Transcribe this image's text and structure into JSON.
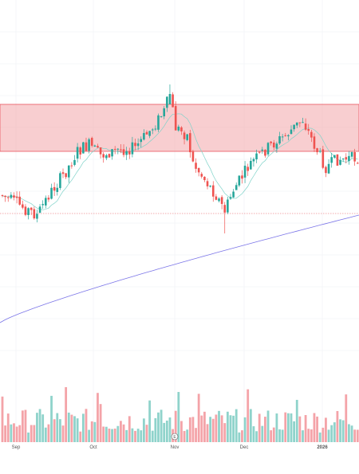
{
  "chart_data": {
    "type": "candlestick",
    "x_axis_labels": [
      "Sep",
      "Oct",
      "Nov",
      "Dec",
      "2026"
    ],
    "resistance_zone": {
      "low": 0.0,
      "high": 1.0,
      "color": "#f3a5a9",
      "border": "#e8545c"
    },
    "support_line": {
      "color": "#e8545c",
      "style": "dotted"
    },
    "moving_averages": [
      {
        "id": "short-ma",
        "color": "#7fd3c9"
      },
      {
        "id": "long-ma",
        "color": "#7b75e8"
      }
    ],
    "colors": {
      "up": "#26a69a",
      "down": "#ef5350",
      "volume_up": "#8fd3cb",
      "volume_down": "#f4a3a8",
      "grid": "#eef0f3"
    },
    "earnings_marker_glyph": "E"
  }
}
